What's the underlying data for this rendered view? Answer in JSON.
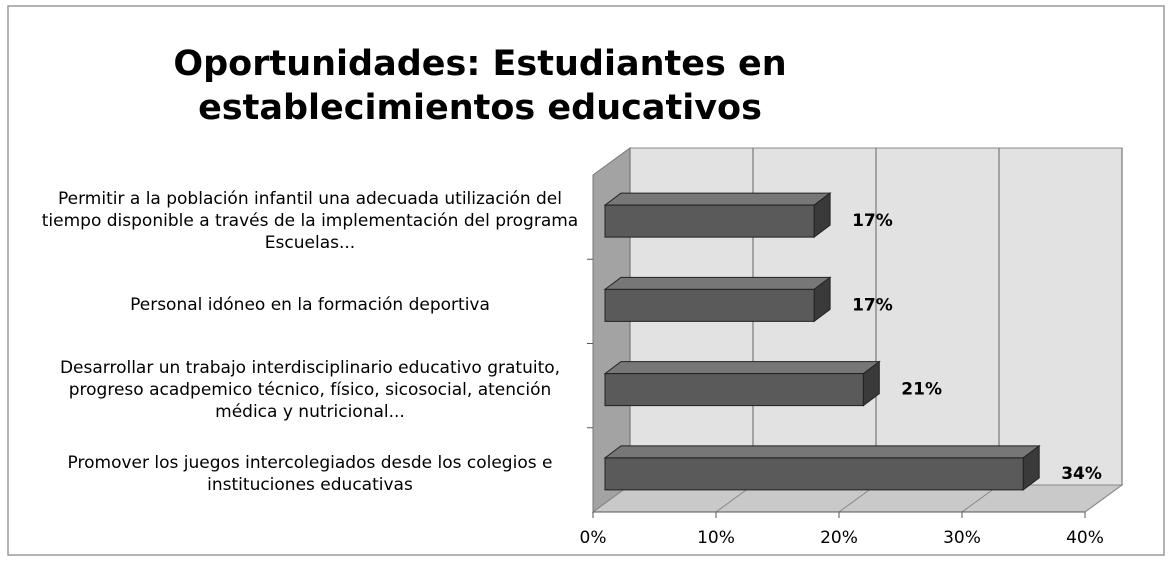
{
  "chart_data": {
    "type": "bar3d_horizontal",
    "title": "Oportunidades: Estudiantes en establecimientos educativos",
    "categories": [
      "Permitir a la población infantil una adecuada utilización del tiempo disponible a través de la implementación del programa Escuelas...",
      "Personal idóneo en la formación deportiva",
      "Desarrollar un trabajo interdisciplinario educativo gratuito, progreso acadpemico técnico, físico, sicosocial, atención médica y nutricional...",
      "Promover los juegos intercolegiados desde los colegios e instituciones educativas"
    ],
    "values": [
      17,
      17,
      21,
      34
    ],
    "value_labels": [
      "17%",
      "17%",
      "21%",
      "34%"
    ],
    "color": "#5a5a5a",
    "xlim": [
      0,
      40
    ],
    "xticks": [
      {
        "value": 0,
        "label": "0%"
      },
      {
        "value": 10,
        "label": "10%"
      },
      {
        "value": 20,
        "label": "20%"
      },
      {
        "value": 30,
        "label": "30%"
      },
      {
        "value": 40,
        "label": "40%"
      }
    ],
    "grid": true
  }
}
